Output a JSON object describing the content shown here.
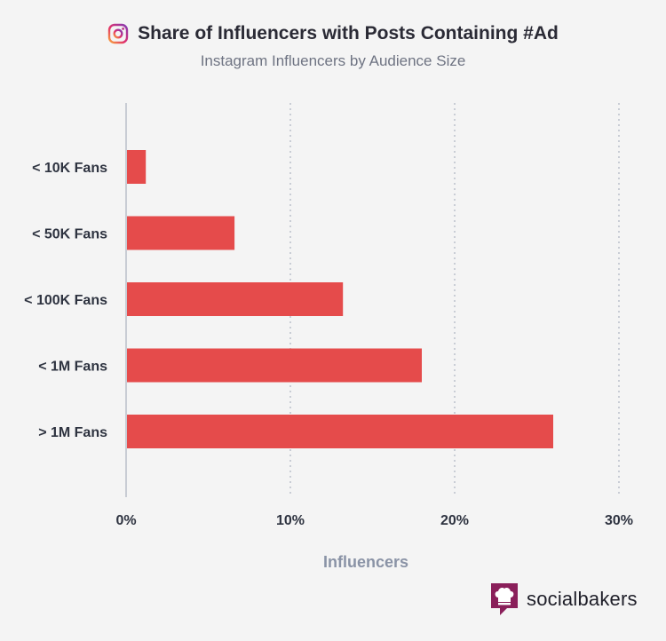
{
  "header": {
    "title": "Share of Influencers with Posts Containing #Ad",
    "subtitle": "Instagram Influencers by Audience Size",
    "icon": "instagram-icon"
  },
  "brand": {
    "name": "socialbakers",
    "icon": "socialbakers-chef-hat-icon",
    "color": "#8a1f5a"
  },
  "chart_data": {
    "type": "bar",
    "orientation": "horizontal",
    "categories": [
      "< 10K Fans",
      "< 50K Fans",
      "< 100K Fans",
      "< 1M Fans",
      "> 1M Fans"
    ],
    "values": [
      1.2,
      6.6,
      13.2,
      18,
      26
    ],
    "xlabel": "Influencers",
    "xlim": [
      0,
      30
    ],
    "xticks": [
      "0%",
      "10%",
      "20%",
      "30%"
    ],
    "grid": true,
    "bar_color": "#e54b4b"
  }
}
